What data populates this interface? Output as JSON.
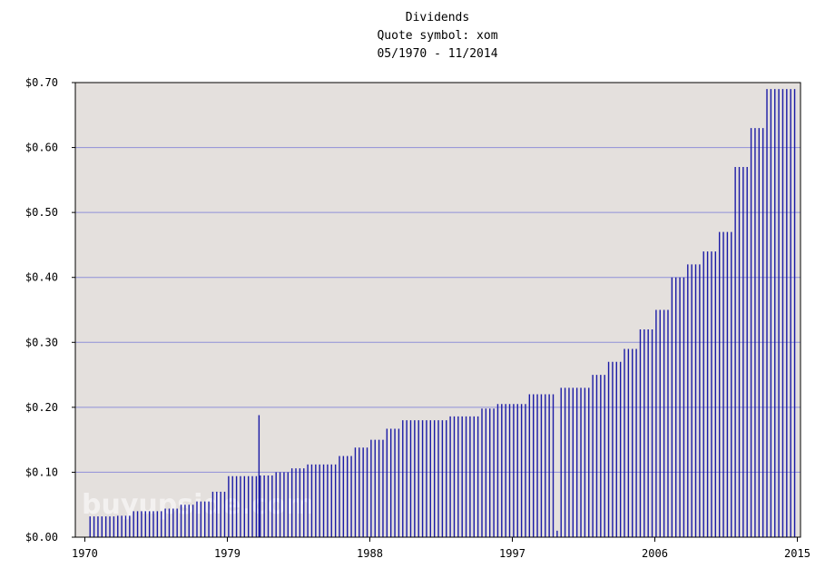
{
  "chart_data": {
    "type": "bar",
    "title": "Dividends",
    "subtitle": "Quote symbol: xom",
    "date_range": "05/1970 - 11/2014",
    "xlabel": "",
    "ylabel": "",
    "ylim": [
      0,
      0.7
    ],
    "xlim": [
      1969.4,
      2015.2
    ],
    "yticks": [
      "$0.00",
      "$0.10",
      "$0.20",
      "$0.30",
      "$0.40",
      "$0.50",
      "$0.60",
      "$0.70"
    ],
    "xticks": [
      "1970",
      "1979",
      "1988",
      "1997",
      "2006",
      "2015"
    ],
    "grid": true,
    "watermark": "buyupside.com",
    "colors": {
      "bars": "#1a1aa6",
      "plot_bg": "#e4e0dd",
      "grid": "#8f8fd8"
    },
    "years": [
      1970,
      1971,
      1972,
      1973,
      1974,
      1975,
      1976,
      1977,
      1978,
      1979,
      1980,
      1981,
      1982,
      1983,
      1984,
      1985,
      1986,
      1987,
      1988,
      1989,
      1990,
      1991,
      1992,
      1993,
      1994,
      1995,
      1996,
      1997,
      1998,
      1999,
      2000,
      2001,
      2002,
      2003,
      2004,
      2005,
      2006,
      2007,
      2008,
      2009,
      2010,
      2011,
      2012,
      2013,
      2014
    ],
    "quarterly_dividend": [
      0.032,
      0.032,
      0.033,
      0.04,
      0.04,
      0.044,
      0.05,
      0.055,
      0.07,
      0.094,
      0.094,
      0.095,
      0.1,
      0.106,
      0.112,
      0.112,
      0.125,
      0.138,
      0.15,
      0.167,
      0.18,
      0.18,
      0.18,
      0.186,
      0.186,
      0.198,
      0.205,
      0.205,
      0.22,
      0.22,
      0.23,
      0.23,
      0.25,
      0.27,
      0.29,
      0.32,
      0.35,
      0.4,
      0.42,
      0.44,
      0.47,
      0.57,
      0.63,
      0.69,
      0.69
    ],
    "anomalies": [
      {
        "date": "1981",
        "value": 0.188
      },
      {
        "date": "late 1999",
        "value": 0.01
      }
    ]
  }
}
